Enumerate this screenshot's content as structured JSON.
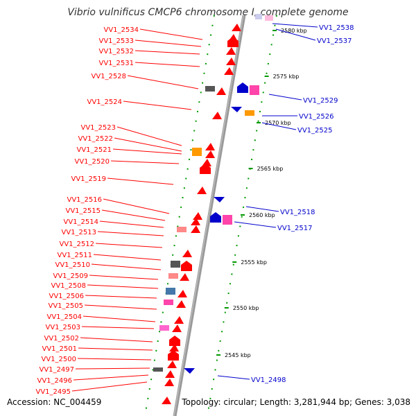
{
  "title": "Vibrio vulnificus CMCP6 chromosome I, complete genome",
  "footer": {
    "accession": "Accession: NC_004459",
    "topology": "Topology: circular; Length: 3,281,944 bp; Genes: 3,038"
  },
  "colors": {
    "left_label": "#ff0000",
    "right_label": "#0000cc",
    "axis": "#999999",
    "dots": "#009900",
    "tick": "#009900"
  },
  "kbp_marks": [
    "2580 kbp",
    "2575 kbp",
    "2570 kbp",
    "2565 kbp",
    "2560 kbp",
    "2555 kbp",
    "2550 kbp",
    "2545 kbp"
  ],
  "left_genes": [
    "VV1_2534",
    "VV1_2533",
    "VV1_2532",
    "VV1_2531",
    "VV1_2528",
    "VV1_2524",
    "VV1_2523",
    "VV1_2522",
    "VV1_2521",
    "VV1_2520",
    "VV1_2519",
    "VV1_2516",
    "VV1_2515",
    "VV1_2514",
    "VV1_2513",
    "VV1_2512",
    "VV1_2511",
    "VV1_2510",
    "VV1_2509",
    "VV1_2508",
    "VV1_2506",
    "VV1_2505",
    "VV1_2504",
    "VV1_2503",
    "VV1_2502",
    "VV1_2501",
    "VV1_2500",
    "VV1_2497",
    "VV1_2496",
    "VV1_2495"
  ],
  "right_genes": [
    "VV1_2538",
    "VV1_2537",
    "VV1_2529",
    "VV1_2526",
    "VV1_2525",
    "VV1_2518",
    "VV1_2517",
    "VV1_2498"
  ]
}
